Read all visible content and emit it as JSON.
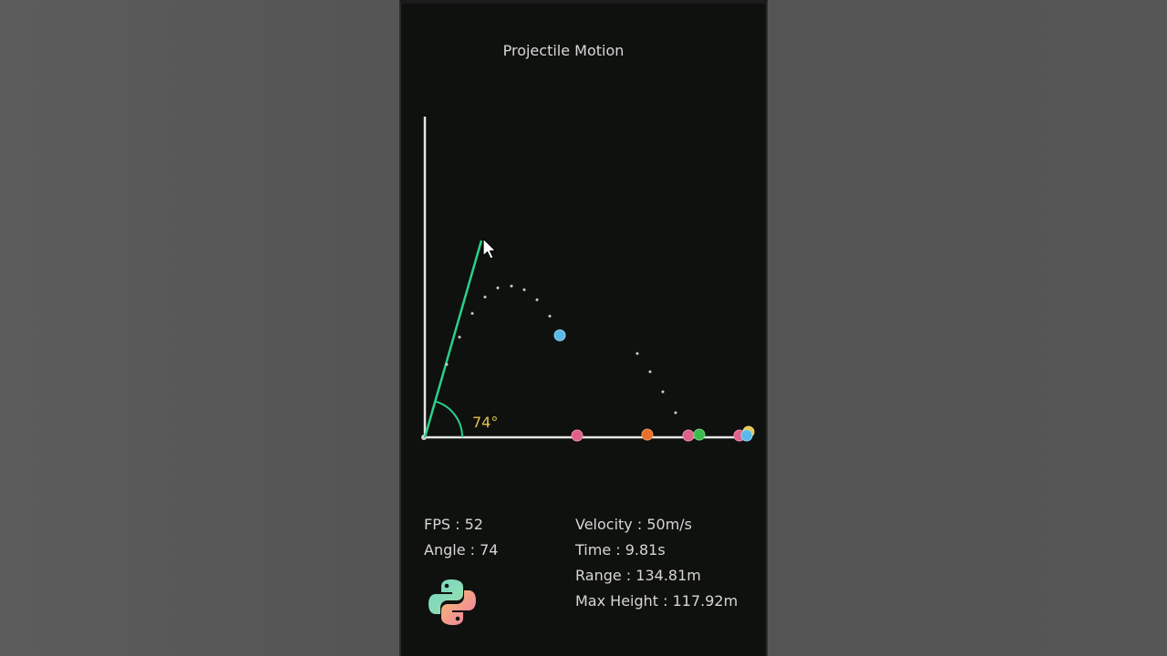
{
  "window": {
    "title": "Projectile Motion"
  },
  "launcher": {
    "angle_label": "74°",
    "angle_deg": 74
  },
  "stats": {
    "fps": "FPS : 52",
    "angle": "Angle : 74",
    "velocity": "Velocity : 50m/s",
    "time": "Time : 9.81s",
    "range": "Range : 134.81m",
    "max_height": "Max Height : 117.92m"
  },
  "colors": {
    "background": "#0f110e",
    "axes": "#e6e6e6",
    "launcher": "#2bd08a",
    "angle_text": "#e2c44a",
    "ball_flying": "#5bb8e8"
  },
  "icons": {
    "cursor": "arrow-cursor-icon",
    "logo": "python-logo-icon"
  },
  "landed_balls": [
    {
      "color": "#e0608a"
    },
    {
      "color": "#e8702a"
    },
    {
      "color": "#e0608a"
    },
    {
      "color": "#3aba4a"
    },
    {
      "color": "#e0608a"
    },
    {
      "color": "#5bb8e8"
    },
    {
      "color": "#e8c84a"
    }
  ]
}
